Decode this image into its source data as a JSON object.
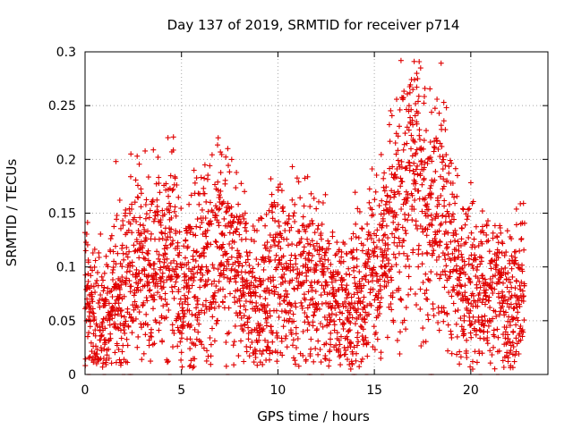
{
  "chart_data": {
    "type": "scatter",
    "title": "Day 137 of 2019, SRMTID for receiver p714",
    "xlabel": "GPS time / hours",
    "ylabel": "SRMTID / TECUs",
    "xlim": [
      0,
      24
    ],
    "ylim": [
      0,
      0.3
    ],
    "xticks": [
      0,
      5,
      10,
      15,
      20
    ],
    "xtick_labels": [
      "0",
      "5",
      "10",
      "15",
      "20"
    ],
    "yticks": [
      0,
      0.05,
      0.1,
      0.15,
      0.2,
      0.25,
      0.3
    ],
    "ytick_labels": [
      "0",
      "0.05",
      "0.1",
      "0.15",
      "0.2",
      "0.25",
      "0.3"
    ],
    "grid": true,
    "marker": "+",
    "color": "#e00000",
    "series": [
      {
        "name": "SRMTID",
        "envelope": [
          {
            "x": 0.0,
            "y": 0.07
          },
          {
            "x": 0.5,
            "y": 0.05
          },
          {
            "x": 1.0,
            "y": 0.05
          },
          {
            "x": 1.5,
            "y": 0.07
          },
          {
            "x": 2.0,
            "y": 0.08
          },
          {
            "x": 2.5,
            "y": 0.1
          },
          {
            "x": 3.0,
            "y": 0.1
          },
          {
            "x": 3.5,
            "y": 0.11
          },
          {
            "x": 4.0,
            "y": 0.1
          },
          {
            "x": 4.5,
            "y": 0.12
          },
          {
            "x": 5.0,
            "y": 0.08
          },
          {
            "x": 5.5,
            "y": 0.09
          },
          {
            "x": 6.0,
            "y": 0.09
          },
          {
            "x": 6.5,
            "y": 0.1
          },
          {
            "x": 7.0,
            "y": 0.12
          },
          {
            "x": 7.5,
            "y": 0.11
          },
          {
            "x": 8.0,
            "y": 0.1
          },
          {
            "x": 8.5,
            "y": 0.07
          },
          {
            "x": 9.0,
            "y": 0.07
          },
          {
            "x": 9.5,
            "y": 0.08
          },
          {
            "x": 10.0,
            "y": 0.1
          },
          {
            "x": 10.5,
            "y": 0.08
          },
          {
            "x": 11.0,
            "y": 0.1
          },
          {
            "x": 11.5,
            "y": 0.1
          },
          {
            "x": 12.0,
            "y": 0.09
          },
          {
            "x": 12.5,
            "y": 0.07
          },
          {
            "x": 13.0,
            "y": 0.07
          },
          {
            "x": 13.5,
            "y": 0.06
          },
          {
            "x": 14.0,
            "y": 0.07
          },
          {
            "x": 14.5,
            "y": 0.08
          },
          {
            "x": 15.0,
            "y": 0.09
          },
          {
            "x": 15.5,
            "y": 0.11
          },
          {
            "x": 16.0,
            "y": 0.14
          },
          {
            "x": 16.5,
            "y": 0.17
          },
          {
            "x": 17.0,
            "y": 0.19
          },
          {
            "x": 17.5,
            "y": 0.16
          },
          {
            "x": 18.0,
            "y": 0.14
          },
          {
            "x": 18.5,
            "y": 0.16
          },
          {
            "x": 19.0,
            "y": 0.12
          },
          {
            "x": 19.5,
            "y": 0.08
          },
          {
            "x": 20.0,
            "y": 0.08
          },
          {
            "x": 20.5,
            "y": 0.07
          },
          {
            "x": 21.0,
            "y": 0.08
          },
          {
            "x": 21.5,
            "y": 0.07
          },
          {
            "x": 22.0,
            "y": 0.06
          },
          {
            "x": 22.5,
            "y": 0.07
          },
          {
            "x": 22.8,
            "y": 0.09
          }
        ],
        "notable_points": [
          {
            "x": 17.4,
            "y": 0.285
          },
          {
            "x": 17.2,
            "y": 0.28
          },
          {
            "x": 17.0,
            "y": 0.265
          },
          {
            "x": 18.6,
            "y": 0.253
          },
          {
            "x": 16.8,
            "y": 0.25
          },
          {
            "x": 7.4,
            "y": 0.21
          },
          {
            "x": 4.5,
            "y": 0.207
          },
          {
            "x": 2.7,
            "y": 0.203
          },
          {
            "x": 1.6,
            "y": 0.198
          },
          {
            "x": 0.0,
            "y": 0.132
          },
          {
            "x": 20.1,
            "y": 0.012
          },
          {
            "x": 20.1,
            "y": 0.005
          },
          {
            "x": 8.7,
            "y": 0.02
          }
        ],
        "zero_points_x": [
          0.2,
          1.0,
          2.0,
          2.3,
          2.4,
          4.4,
          7.4,
          11.6,
          11.7,
          12.3,
          13.9,
          14.0,
          14.6,
          17.9,
          18.0,
          20.5,
          21.4
        ]
      }
    ]
  }
}
